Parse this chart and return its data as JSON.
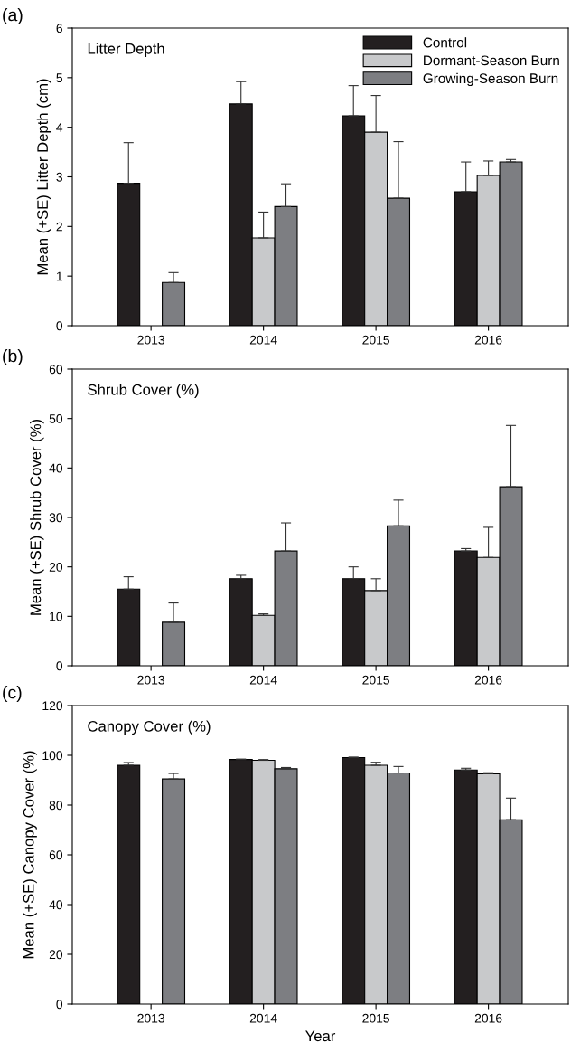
{
  "chart_data": [
    {
      "type": "bar",
      "title": "Litter Depth",
      "ylabel": "Mean (+SE) Litter Depth (cm)",
      "annotations": [
        "(a)"
      ],
      "categories": [
        "2013",
        "2014",
        "2015",
        "2016"
      ],
      "ylim": [
        0,
        6
      ],
      "yticks": [
        0,
        1,
        2,
        3,
        4,
        5,
        6
      ],
      "legend": "top right",
      "grid": false,
      "series": [
        {
          "name": "Control",
          "color": "#231f20",
          "values": [
            2.87,
            4.47,
            4.23,
            2.7
          ],
          "errors": [
            [
              2.87,
              3.69
            ],
            [
              4.47,
              4.92
            ],
            [
              4.23,
              4.84
            ],
            [
              2.7,
              3.3
            ]
          ]
        },
        {
          "name": "Dormant-Season Burn",
          "color": "#c8c9cb",
          "values": [
            null,
            1.77,
            3.9,
            3.03
          ],
          "errors": [
            null,
            [
              1.77,
              2.29
            ],
            [
              3.9,
              4.64
            ],
            [
              3.03,
              3.32
            ]
          ]
        },
        {
          "name": "Growing-Season Burn",
          "color": "#7d7e82",
          "values": [
            0.87,
            2.4,
            2.57,
            3.3
          ],
          "errors": [
            [
              0.87,
              1.07
            ],
            [
              2.4,
              2.86
            ],
            [
              2.57,
              3.71
            ],
            [
              3.3,
              3.35
            ]
          ]
        }
      ]
    },
    {
      "type": "bar",
      "title": "Shrub Cover (%)",
      "ylabel": "Mean (+SE) Shrub Cover (%)",
      "annotations": [
        "(b)"
      ],
      "categories": [
        "2013",
        "2014",
        "2015",
        "2016"
      ],
      "ylim": [
        0,
        60
      ],
      "yticks": [
        0,
        10,
        20,
        30,
        40,
        50,
        60
      ],
      "grid": false,
      "series": [
        {
          "color": "#231f20",
          "values": [
            15.5,
            17.6,
            17.6,
            23.2
          ],
          "errors": [
            [
              15.5,
              18.0
            ],
            [
              17.6,
              18.3
            ],
            [
              17.6,
              20.0
            ],
            [
              23.2,
              23.7
            ]
          ]
        },
        {
          "color": "#c8c9cb",
          "values": [
            null,
            10.2,
            15.2,
            21.9
          ],
          "errors": [
            null,
            [
              10.2,
              10.5
            ],
            [
              15.2,
              17.6
            ],
            [
              21.9,
              28.0
            ]
          ]
        },
        {
          "color": "#7d7e82",
          "values": [
            8.8,
            23.2,
            28.3,
            36.2
          ],
          "errors": [
            [
              8.8,
              12.7
            ],
            [
              23.2,
              28.9
            ],
            [
              28.3,
              33.5
            ],
            [
              36.2,
              48.6
            ]
          ]
        }
      ]
    },
    {
      "type": "bar",
      "title": "Canopy Cover (%)",
      "ylabel": "Mean (+SE) Canopy Cover (%)",
      "xlabel": "Year",
      "annotations": [
        "(c)"
      ],
      "categories": [
        "2013",
        "2014",
        "2015",
        "2016"
      ],
      "ylim": [
        0,
        120
      ],
      "yticks": [
        0,
        20,
        40,
        60,
        80,
        100,
        120
      ],
      "grid": false,
      "series": [
        {
          "color": "#231f20",
          "values": [
            96.0,
            98.3,
            99.1,
            94.1
          ],
          "errors": [
            [
              96.0,
              97.1
            ],
            [
              98.3,
              98.5
            ],
            [
              99.1,
              99.3
            ],
            [
              94.1,
              94.8
            ]
          ]
        },
        {
          "color": "#c8c9cb",
          "values": [
            null,
            98.0,
            96.0,
            92.6
          ],
          "errors": [
            null,
            [
              98.0,
              98.3
            ],
            [
              96.0,
              97.2
            ],
            [
              92.6,
              93.0
            ]
          ]
        },
        {
          "color": "#7d7e82",
          "values": [
            90.5,
            94.6,
            92.9,
            74.1
          ],
          "errors": [
            [
              90.5,
              92.7
            ],
            [
              94.6,
              95.1
            ],
            [
              92.9,
              95.5
            ],
            [
              74.1,
              82.8
            ]
          ]
        }
      ]
    }
  ]
}
